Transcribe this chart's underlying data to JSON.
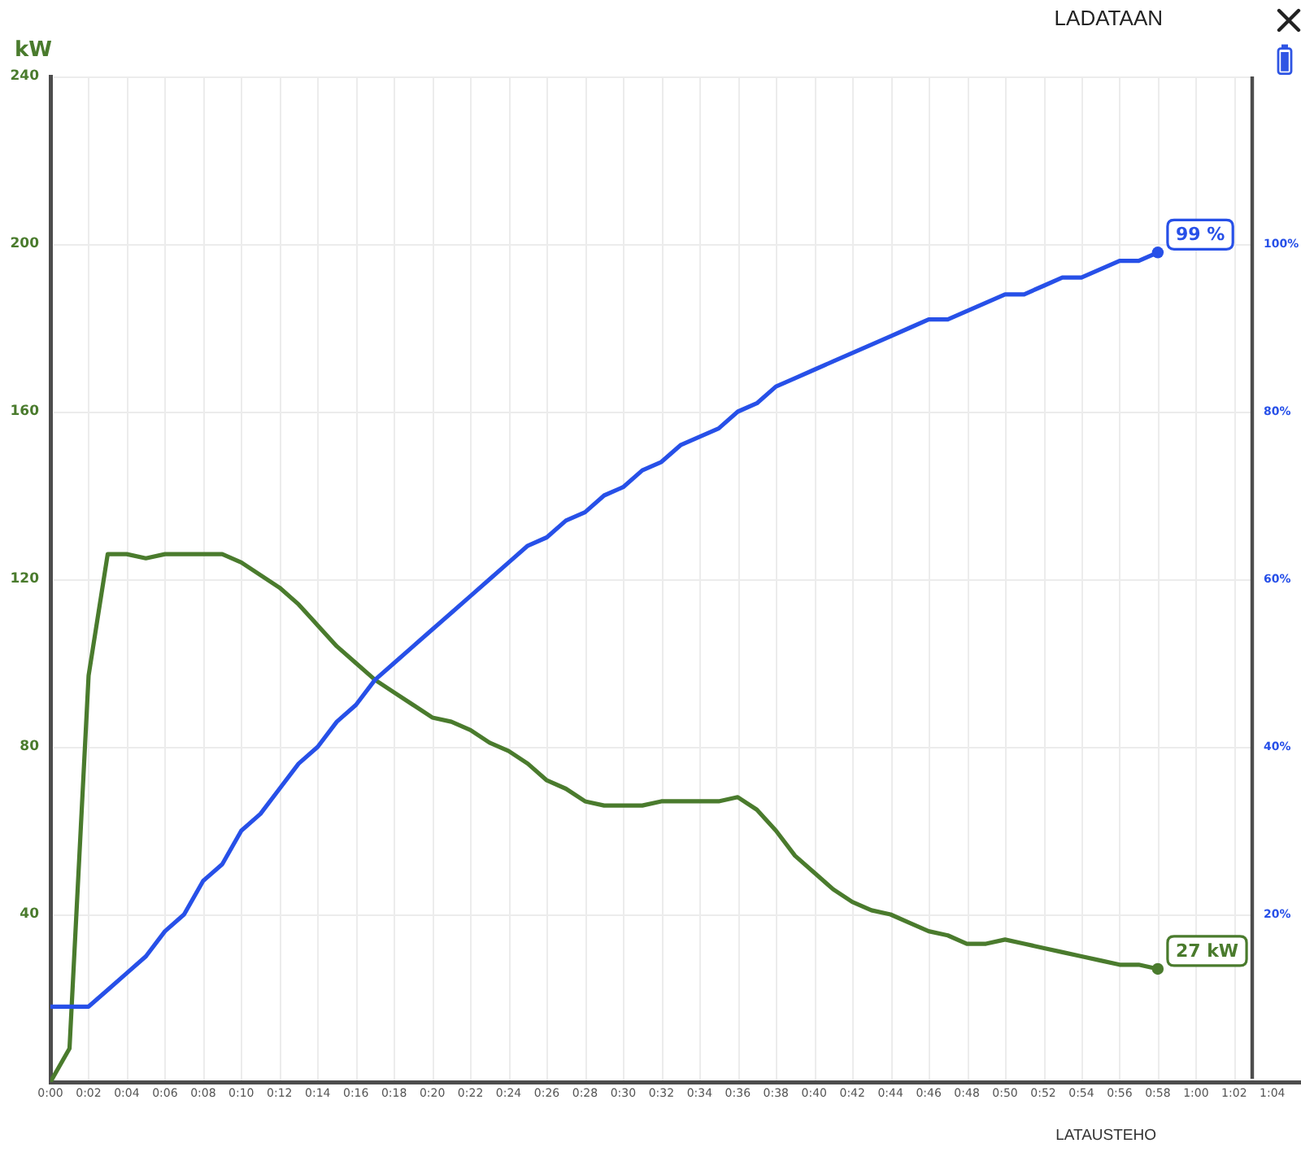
{
  "chart_data": {
    "type": "line",
    "title": "LADATAAN",
    "ylabel": "kW",
    "annotations": [
      "LATAUSTEHO"
    ],
    "x": [
      0,
      1,
      2,
      3,
      4,
      5,
      6,
      7,
      8,
      9,
      10,
      11,
      12,
      13,
      14,
      15,
      16,
      17,
      18,
      19,
      20,
      21,
      22,
      23,
      24,
      25,
      26,
      27,
      28,
      29,
      30,
      31,
      32,
      33,
      34,
      35,
      36,
      37,
      38,
      39,
      40,
      41,
      42,
      43,
      44,
      45,
      46,
      47,
      48,
      49,
      50,
      51,
      52,
      53,
      54,
      55,
      56,
      57,
      58
    ],
    "series": [
      {
        "color": "#4a7b2d",
        "values": [
          0,
          8,
          97,
          126,
          126,
          125,
          126,
          126,
          126,
          126,
          124,
          121,
          118,
          114,
          109,
          104,
          100,
          96,
          93,
          90,
          87,
          86,
          84,
          81,
          79,
          76,
          72,
          70,
          67,
          66,
          66,
          66,
          67,
          67,
          67,
          67,
          68,
          65,
          60,
          54,
          50,
          46,
          43,
          41,
          40,
          38,
          36,
          35,
          33,
          33,
          34,
          33,
          32,
          31,
          30,
          29,
          28,
          28,
          27
        ],
        "value_labels": [
          null,
          null,
          null,
          null,
          null,
          null,
          null,
          null,
          null,
          null,
          null,
          null,
          null,
          null,
          null,
          null,
          null,
          null,
          null,
          null,
          null,
          null,
          null,
          null,
          null,
          null,
          null,
          null,
          null,
          null,
          null,
          null,
          null,
          null,
          null,
          null,
          null,
          null,
          null,
          null,
          null,
          null,
          null,
          null,
          null,
          null,
          null,
          null,
          null,
          null,
          null,
          null,
          null,
          null,
          null,
          null,
          null,
          null,
          "27 kW"
        ]
      },
      {
        "color": "#2750e8",
        "axis": "y2",
        "values": [
          9,
          9,
          9,
          11,
          13,
          15,
          18,
          20,
          24,
          26,
          30,
          32,
          35,
          38,
          40,
          43,
          45,
          48,
          50,
          52,
          54,
          56,
          58,
          60,
          62,
          64,
          65,
          67,
          68,
          70,
          71,
          73,
          74,
          76,
          77,
          78,
          80,
          81,
          83,
          84,
          85,
          86,
          87,
          88,
          89,
          90,
          91,
          91,
          92,
          93,
          94,
          94,
          95,
          96,
          96,
          97,
          98,
          98,
          99
        ],
        "value_labels": [
          null,
          null,
          null,
          null,
          null,
          null,
          null,
          null,
          null,
          null,
          null,
          null,
          null,
          null,
          null,
          null,
          null,
          null,
          null,
          null,
          null,
          null,
          null,
          null,
          null,
          null,
          null,
          null,
          null,
          null,
          null,
          null,
          null,
          null,
          null,
          null,
          null,
          null,
          null,
          null,
          null,
          null,
          null,
          null,
          null,
          null,
          null,
          null,
          null,
          null,
          null,
          null,
          null,
          null,
          null,
          null,
          null,
          null,
          "99 %"
        ]
      }
    ],
    "xlim": [
      0,
      65.5
    ],
    "xticks": [
      {
        "value": 0,
        "label": "0:00"
      },
      {
        "value": 2,
        "label": "0:02"
      },
      {
        "value": 4,
        "label": "0:04"
      },
      {
        "value": 6,
        "label": "0:06"
      },
      {
        "value": 8,
        "label": "0:08"
      },
      {
        "value": 10,
        "label": "0:10"
      },
      {
        "value": 12,
        "label": "0:12"
      },
      {
        "value": 14,
        "label": "0:14"
      },
      {
        "value": 16,
        "label": "0:16"
      },
      {
        "value": 18,
        "label": "0:18"
      },
      {
        "value": 20,
        "label": "0:20"
      },
      {
        "value": 22,
        "label": "0:22"
      },
      {
        "value": 24,
        "label": "0:24"
      },
      {
        "value": 26,
        "label": "0:26"
      },
      {
        "value": 28,
        "label": "0:28"
      },
      {
        "value": 30,
        "label": "0:30"
      },
      {
        "value": 32,
        "label": "0:32"
      },
      {
        "value": 34,
        "label": "0:34"
      },
      {
        "value": 36,
        "label": "0:36"
      },
      {
        "value": 38,
        "label": "0:38"
      },
      {
        "value": 40,
        "label": "0:40"
      },
      {
        "value": 42,
        "label": "0:42"
      },
      {
        "value": 44,
        "label": "0:44"
      },
      {
        "value": 46,
        "label": "0:46"
      },
      {
        "value": 48,
        "label": "0:48"
      },
      {
        "value": 50,
        "label": "0:50"
      },
      {
        "value": 52,
        "label": "0:52"
      },
      {
        "value": 54,
        "label": "0:54"
      },
      {
        "value": 56,
        "label": "0:56"
      },
      {
        "value": 58,
        "label": "0:58"
      },
      {
        "value": 60,
        "label": "1:00"
      },
      {
        "value": 62,
        "label": "1:02"
      },
      {
        "value": 64,
        "label": "1:04"
      }
    ],
    "ylim": [
      0,
      240
    ],
    "yticks": [
      40,
      80,
      120,
      160,
      200,
      240
    ],
    "y2lim": [
      0,
      120
    ],
    "y2ticks": [
      {
        "value": 20,
        "label": "20%"
      },
      {
        "value": 40,
        "label": "40%"
      },
      {
        "value": 60,
        "label": "60%"
      },
      {
        "value": 80,
        "label": "80%"
      },
      {
        "value": 100,
        "label": "100%"
      }
    ],
    "grid": true,
    "marker": "none",
    "line_style": "solid"
  }
}
